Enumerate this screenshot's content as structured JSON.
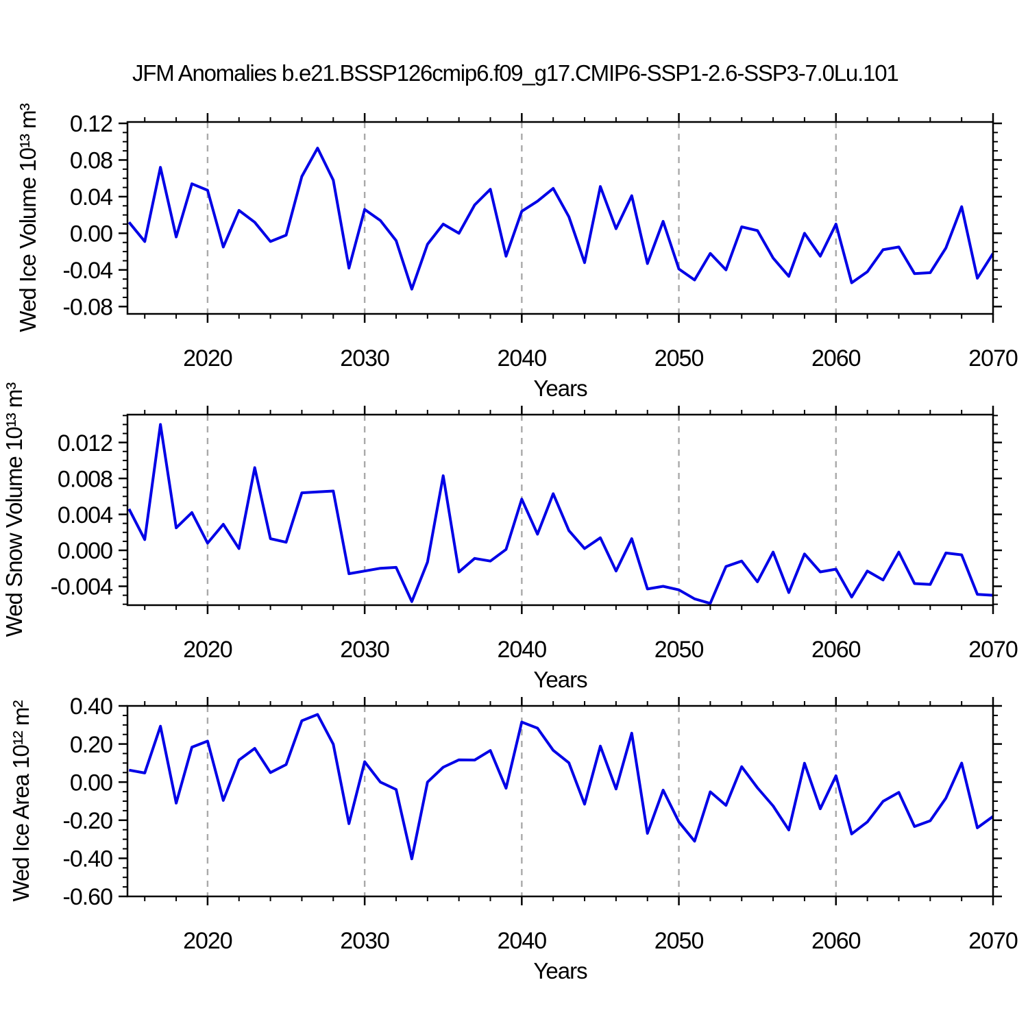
{
  "title": "JFM Anomalies b.e21.BSSP126cmip6.f09_g17.CMIP6-SSP1-2.6-SSP3-7.0Lu.101",
  "line_color": "#0000e6",
  "grid_color": "#a9a9a9",
  "axis_color": "#000000",
  "chart_data": [
    {
      "type": "line",
      "ylabel": "Wed Ice Volume 10¹³ m³",
      "xlabel": "Years",
      "x_start": 2015,
      "x_end": 2070,
      "x_step": 1,
      "xlim": [
        2014.9,
        2070
      ],
      "ylim": [
        -0.088,
        0.1215
      ],
      "ytick_values": [
        -0.08,
        -0.04,
        0.0,
        0.04,
        0.08,
        0.12
      ],
      "ytick_labels": [
        "-0.08",
        "-0.04",
        "0.00",
        "0.04",
        "0.08",
        "0.12"
      ],
      "y_minor_step": 0.01,
      "xtick_values": [
        2020,
        2030,
        2040,
        2050,
        2060,
        2070
      ],
      "xtick_labels": [
        "2020",
        "2030",
        "2040",
        "2050",
        "2060",
        "2070"
      ],
      "x_minor_step": 2,
      "grid_x": [
        2020,
        2030,
        2040,
        2050,
        2060
      ],
      "values": [
        0.012,
        -0.009,
        0.072,
        -0.004,
        0.054,
        0.047,
        -0.015,
        0.025,
        0.012,
        -0.009,
        -0.002,
        0.062,
        0.093,
        0.058,
        -0.038,
        0.026,
        0.014,
        -0.008,
        -0.061,
        -0.012,
        0.01,
        0.0,
        0.031,
        0.048,
        -0.025,
        0.024,
        0.035,
        0.049,
        0.018,
        -0.032,
        0.051,
        0.005,
        0.041,
        -0.033,
        0.013,
        -0.039,
        -0.051,
        -0.022,
        -0.04,
        0.007,
        0.003,
        -0.027,
        -0.047,
        0.0,
        -0.025,
        0.01,
        -0.054,
        -0.042,
        -0.018,
        -0.015,
        -0.044,
        -0.043,
        -0.016,
        0.029,
        -0.049,
        -0.022
      ]
    },
    {
      "type": "line",
      "ylabel": "Wed Snow Volume 10¹³ m³",
      "xlabel": "Years",
      "x_start": 2015,
      "x_end": 2070,
      "x_step": 1,
      "xlim": [
        2014.9,
        2070
      ],
      "ylim": [
        -0.0061,
        0.0151
      ],
      "ytick_values": [
        -0.004,
        0.0,
        0.004,
        0.008,
        0.012
      ],
      "ytick_labels": [
        "-0.004",
        "0.000",
        "0.004",
        "0.008",
        "0.012"
      ],
      "y_minor_step": 0.001,
      "xtick_values": [
        2020,
        2030,
        2040,
        2050,
        2060,
        2070
      ],
      "xtick_labels": [
        "2020",
        "2030",
        "2040",
        "2050",
        "2060",
        "2070"
      ],
      "x_minor_step": 2,
      "grid_x": [
        2020,
        2030,
        2040,
        2050,
        2060
      ],
      "values": [
        0.0046,
        0.0012,
        0.014,
        0.0025,
        0.0042,
        0.0008,
        0.0029,
        0.0002,
        0.0092,
        0.0013,
        0.0009,
        0.0064,
        0.0065,
        0.0066,
        -0.0026,
        -0.0023,
        -0.002,
        -0.0019,
        -0.0057,
        -0.0013,
        0.0083,
        -0.0024,
        -0.0009,
        -0.0012,
        0.0001,
        0.0057,
        0.0018,
        0.0063,
        0.0022,
        0.0002,
        0.0014,
        -0.0023,
        0.0013,
        -0.0043,
        -0.004,
        -0.0044,
        -0.0054,
        -0.0059,
        -0.0018,
        -0.0012,
        -0.0035,
        -0.0002,
        -0.0047,
        -0.0004,
        -0.0024,
        -0.0021,
        -0.0052,
        -0.0023,
        -0.0033,
        -0.0002,
        -0.0037,
        -0.0038,
        -0.0003,
        -0.0005,
        -0.0049,
        -0.005
      ]
    },
    {
      "type": "line",
      "ylabel": "Wed Ice Area 10¹² m²",
      "xlabel": "Years",
      "x_start": 2015,
      "x_end": 2070,
      "x_step": 1,
      "xlim": [
        2014.9,
        2070
      ],
      "ylim": [
        -0.6,
        0.4
      ],
      "ytick_values": [
        -0.6,
        -0.4,
        -0.2,
        0.0,
        0.2,
        0.4
      ],
      "ytick_labels": [
        "-0.60",
        "-0.40",
        "-0.20",
        "0.00",
        "0.20",
        "0.40"
      ],
      "y_minor_step": 0.05,
      "xtick_values": [
        2020,
        2030,
        2040,
        2050,
        2060,
        2070
      ],
      "xtick_labels": [
        "2020",
        "2030",
        "2040",
        "2050",
        "2060",
        "2070"
      ],
      "x_minor_step": 2,
      "grid_x": [
        2020,
        2030,
        2040,
        2050,
        2060
      ],
      "values": [
        0.063,
        0.048,
        0.293,
        -0.11,
        0.183,
        0.215,
        -0.096,
        0.116,
        0.177,
        0.05,
        0.092,
        0.322,
        0.355,
        0.199,
        -0.218,
        0.107,
        0.0,
        -0.039,
        -0.403,
        0.0,
        0.078,
        0.117,
        0.116,
        0.166,
        -0.032,
        0.315,
        0.283,
        0.167,
        0.101,
        -0.116,
        0.189,
        -0.036,
        0.257,
        -0.269,
        -0.042,
        -0.209,
        -0.31,
        -0.051,
        -0.122,
        0.081,
        -0.03,
        -0.125,
        -0.251,
        0.099,
        -0.14,
        0.033,
        -0.272,
        -0.209,
        -0.101,
        -0.054,
        -0.233,
        -0.203,
        -0.084,
        0.1,
        -0.24,
        -0.18
      ]
    }
  ]
}
